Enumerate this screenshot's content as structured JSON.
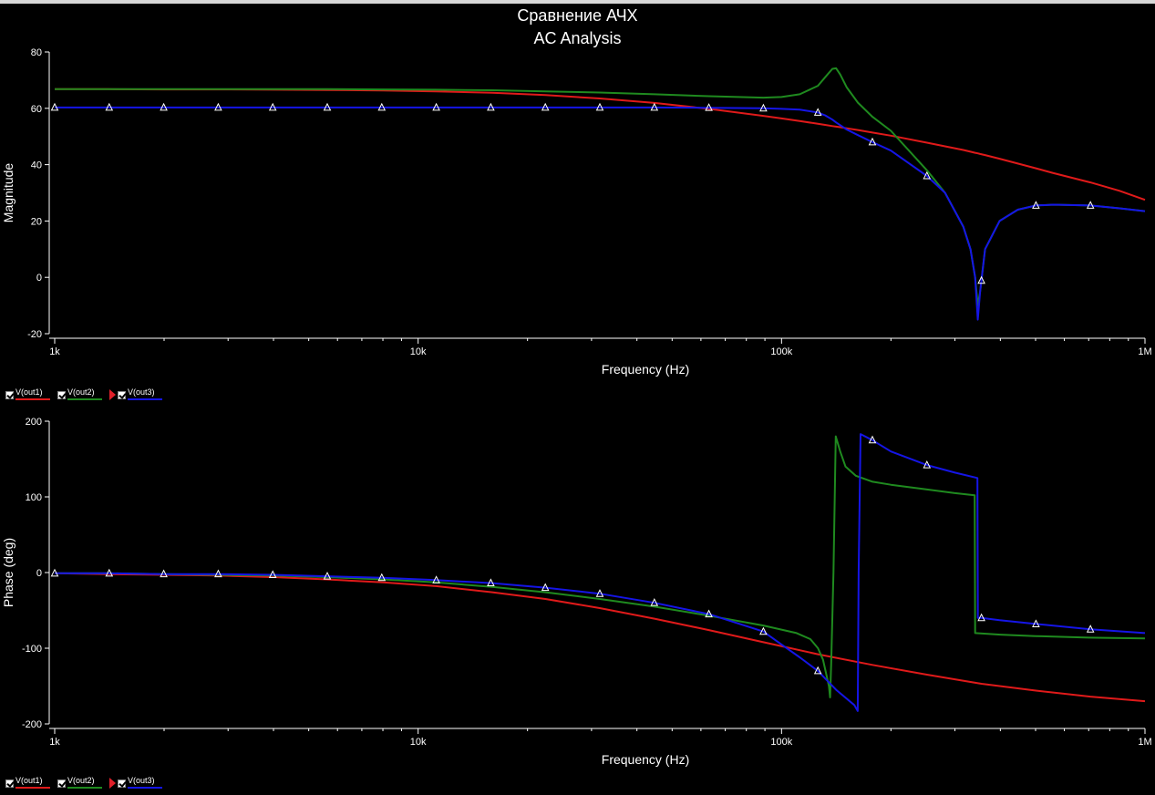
{
  "title": "Сравнение АЧХ",
  "subtitle": "AC Analysis",
  "colors": {
    "out1": "#e01a1a",
    "out2": "#1f8a1f",
    "out3": "#1515e6",
    "axis": "#ffffff",
    "background": "#000000"
  },
  "legend": [
    {
      "name": "V(out1)",
      "color": "#e01a1a"
    },
    {
      "name": "V(out2)",
      "color": "#1f8a1f"
    },
    {
      "name": "V(out3)",
      "color": "#1515e6"
    }
  ],
  "chart_data": [
    {
      "type": "line",
      "title": "",
      "xlabel": "Frequency (Hz)",
      "ylabel": "Magnitude",
      "x_scale": "log",
      "xlim": [
        1000,
        1000000
      ],
      "ylim": [
        -20,
        80
      ],
      "x_ticks": [
        {
          "value": 1000,
          "label": "1k"
        },
        {
          "value": 10000,
          "label": "10k"
        },
        {
          "value": 100000,
          "label": "100k"
        },
        {
          "value": 1000000,
          "label": "1M"
        }
      ],
      "y_ticks": [
        -20,
        0,
        20,
        40,
        60,
        80
      ],
      "x": [
        1000,
        1400,
        2000,
        2800,
        4000,
        5600,
        8000,
        11200,
        16000,
        22400,
        31600,
        44700,
        63100,
        89100,
        100000,
        112200,
        125900,
        131800,
        138000,
        141300,
        145000,
        151000,
        162200,
        177800,
        200000,
        251200,
        281800,
        316200,
        331100,
        341000,
        346700,
        352000,
        363100,
        398100,
        446700,
        501200,
        560000,
        707900,
        851000,
        1000000
      ],
      "series": [
        {
          "name": "V(out1)",
          "values": [
            66.8,
            66.8,
            66.7,
            66.7,
            66.6,
            66.5,
            66.3,
            66.0,
            65.5,
            64.7,
            63.5,
            61.9,
            59.8,
            57.3,
            56.4,
            55.5,
            54.5,
            54.1,
            53.7,
            53.5,
            53.3,
            52.9,
            52.3,
            51.4,
            50.3,
            47.8,
            46.5,
            45.2,
            44.6,
            44.2,
            44.0,
            43.8,
            43.4,
            42.1,
            40.4,
            38.7,
            37.0,
            33.7,
            30.7,
            27.5
          ]
        },
        {
          "name": "V(out2)",
          "values": [
            66.8,
            66.8,
            66.8,
            66.8,
            66.8,
            66.8,
            66.7,
            66.6,
            66.4,
            66.0,
            65.6,
            65.0,
            64.3,
            63.8,
            64.0,
            65.0,
            68.0,
            71.0,
            74.0,
            74.2,
            72.0,
            67.5,
            62.0,
            57.0,
            52.0,
            38.0,
            30.0,
            18.0,
            10.0,
            0.0,
            -10.0,
            -5.0,
            10.0,
            20.0,
            24.0,
            25.5,
            25.8,
            25.5,
            24.5,
            23.5
          ]
        },
        {
          "name": "V(out3)",
          "values": [
            60.3,
            60.3,
            60.3,
            60.3,
            60.3,
            60.3,
            60.3,
            60.3,
            60.3,
            60.3,
            60.3,
            60.3,
            60.2,
            60.0,
            59.8,
            59.5,
            58.5,
            57.5,
            56.0,
            55.0,
            54.0,
            52.5,
            50.5,
            48.0,
            45.0,
            36.0,
            30.0,
            18.0,
            10.0,
            0.0,
            -15.0,
            -5.0,
            10.0,
            20.0,
            24.0,
            25.5,
            25.8,
            25.5,
            24.5,
            23.5
          ]
        }
      ]
    },
    {
      "type": "line",
      "title": "",
      "xlabel": "Frequency (Hz)",
      "ylabel": "Phase (deg)",
      "x_scale": "log",
      "xlim": [
        1000,
        1000000
      ],
      "ylim": [
        -200,
        200
      ],
      "x_ticks": [
        {
          "value": 1000,
          "label": "1k"
        },
        {
          "value": 10000,
          "label": "10k"
        },
        {
          "value": 100000,
          "label": "100k"
        },
        {
          "value": 1000000,
          "label": "1M"
        }
      ],
      "y_ticks": [
        -200,
        -100,
        0,
        100,
        200
      ],
      "series": [
        {
          "name": "V(out1)",
          "x": [
            1000,
            1400,
            2000,
            2800,
            4000,
            5600,
            8000,
            11200,
            16000,
            22400,
            31600,
            44700,
            63100,
            89100,
            125900,
            177800,
            251200,
            354800,
            501200,
            707900,
            1000000
          ],
          "values": [
            -1,
            -2,
            -3,
            -4,
            -6,
            -9,
            -13,
            -18,
            -26,
            -35,
            -47,
            -61,
            -76,
            -92,
            -108,
            -122,
            -135,
            -147,
            -156,
            -164,
            -170
          ]
        },
        {
          "name": "V(out2)",
          "x": [
            1000,
            1400,
            2000,
            2800,
            4000,
            5600,
            8000,
            11200,
            16000,
            22400,
            31600,
            44700,
            63100,
            89100,
            110000,
            120000,
            126000,
            130000,
            135000,
            136000,
            137000,
            139000,
            141000,
            145000,
            150000,
            160000,
            178000,
            200000,
            250000,
            300000,
            340000,
            341000,
            400000,
            500000,
            700000,
            1000000
          ],
          "values": [
            -1,
            -1,
            -2,
            -3,
            -4,
            -6,
            -9,
            -13,
            -19,
            -26,
            -35,
            -45,
            -57,
            -70,
            -80,
            -88,
            -100,
            -115,
            -150,
            -165,
            -120,
            0,
            180,
            160,
            140,
            128,
            120,
            116,
            110,
            105,
            102,
            -80,
            -82,
            -84,
            -86,
            -87
          ]
        },
        {
          "name": "V(out3)",
          "x": [
            1000,
            1400,
            2000,
            2800,
            4000,
            5600,
            8000,
            11200,
            16000,
            22400,
            31600,
            44700,
            63100,
            89100,
            100000,
            112200,
            125900,
            141300,
            158500,
            162000,
            163000,
            165000,
            177800,
            200000,
            251200,
            300000,
            346000,
            347000,
            354800,
            398100,
            501200,
            707900,
            1000000
          ],
          "values": [
            -1,
            -1,
            -2,
            -2,
            -3,
            -5,
            -7,
            -10,
            -14,
            -20,
            -28,
            -40,
            -55,
            -78,
            -95,
            -112,
            -130,
            -155,
            -175,
            -183,
            0,
            183,
            175,
            160,
            142,
            132,
            125,
            -60,
            -60,
            -63,
            -68,
            -75,
            -80
          ]
        }
      ]
    }
  ]
}
